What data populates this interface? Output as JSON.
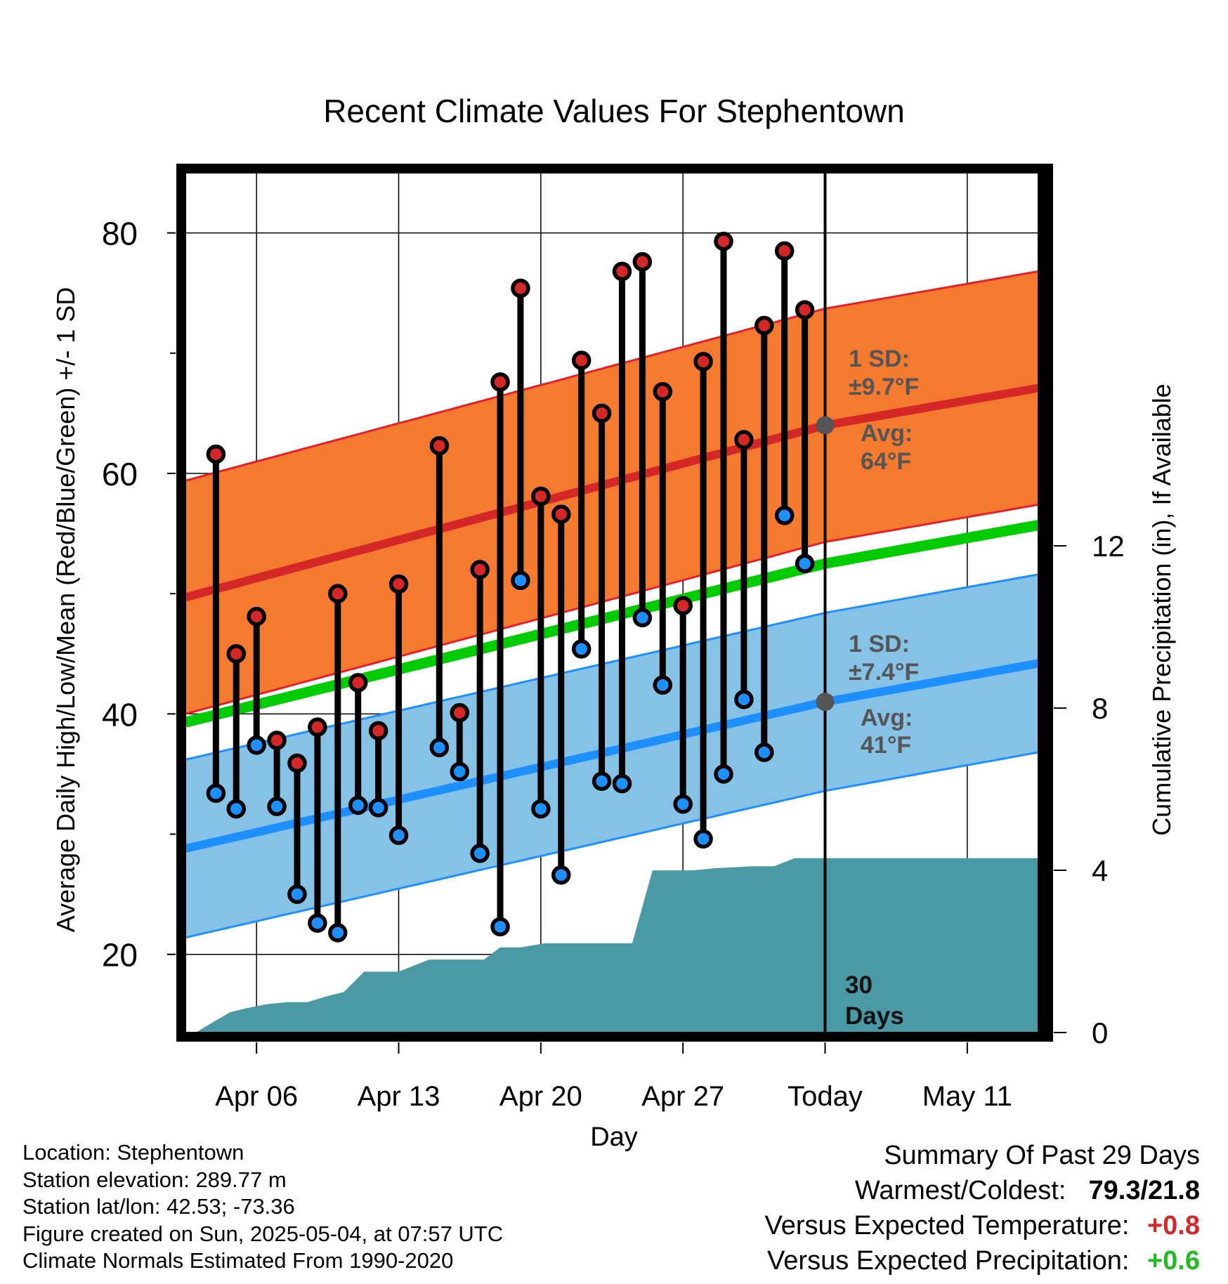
{
  "chart_data": {
    "type": "line",
    "title": "Recent Climate Values For Stephentown",
    "xlabel": "Day",
    "ylabel": "Average Daily High/Low/Mean (Red/Blue/Green) +/- 1 SD",
    "y2label": "Cumulative Precipitation (in), If Available",
    "ylim": [
      13.5,
      85
    ],
    "y2lim": [
      0,
      21.2
    ],
    "yticks": [
      80,
      60,
      40,
      20
    ],
    "y2ticks": [
      12,
      8,
      4,
      0
    ],
    "x_range_days": [
      1.5,
      43.5
    ],
    "xticks": [
      {
        "day": 5,
        "label": "Apr 06"
      },
      {
        "day": 12,
        "label": "Apr 13"
      },
      {
        "day": 19,
        "label": "Apr 20"
      },
      {
        "day": 26,
        "label": "Apr 27"
      },
      {
        "day": 33,
        "label": "Today"
      },
      {
        "day": 40,
        "label": "May 11"
      }
    ],
    "today_day": 33,
    "today_label": "30 Days",
    "grid": true,
    "normals": {
      "high_mean": [
        [
          1.5,
          49.7
        ],
        [
          33,
          64
        ],
        [
          43.5,
          67.1
        ]
      ],
      "high_sd": 9.7,
      "low_mean": [
        [
          1.5,
          28.8
        ],
        [
          33,
          41
        ],
        [
          43.5,
          44.2
        ]
      ],
      "low_sd": 7.4,
      "overall_mean": [
        [
          1.5,
          39.3
        ],
        [
          33,
          52.5
        ],
        [
          43.5,
          55.7
        ]
      ]
    },
    "annotations": {
      "high_sd_label": [
        "1 SD:",
        "±9.7°F"
      ],
      "high_avg_label": [
        "Avg:",
        "64°F"
      ],
      "low_sd_label": [
        "1 SD:",
        "±7.4°F"
      ],
      "low_avg_label": [
        "Avg:",
        "41°F"
      ]
    },
    "series": [
      {
        "name": "High",
        "color": "#d62728",
        "values": [
          [
            3,
            61.6
          ],
          [
            4,
            45.0
          ],
          [
            5,
            48.1
          ],
          [
            6,
            37.8
          ],
          [
            7,
            35.9
          ],
          [
            8,
            38.9
          ],
          [
            9,
            50.0
          ],
          [
            10,
            42.6
          ],
          [
            11,
            38.6
          ],
          [
            12,
            50.8
          ],
          [
            14,
            62.3
          ],
          [
            15,
            40.1
          ],
          [
            16,
            52.0
          ],
          [
            17,
            67.6
          ],
          [
            18,
            75.4
          ],
          [
            19,
            58.1
          ],
          [
            20,
            56.6
          ],
          [
            21,
            69.4
          ],
          [
            22,
            65.0
          ],
          [
            23,
            76.8
          ],
          [
            24,
            77.6
          ],
          [
            25,
            66.8
          ],
          [
            26,
            49.0
          ],
          [
            27,
            69.3
          ],
          [
            28,
            79.3
          ],
          [
            29,
            62.8
          ],
          [
            30,
            72.3
          ],
          [
            31,
            78.5
          ],
          [
            32,
            73.6
          ]
        ]
      },
      {
        "name": "Low",
        "color": "#1e8fff",
        "values": [
          [
            3,
            33.4
          ],
          [
            4,
            32.1
          ],
          [
            5,
            37.4
          ],
          [
            6,
            32.3
          ],
          [
            7,
            25.0
          ],
          [
            8,
            22.6
          ],
          [
            9,
            21.8
          ],
          [
            10,
            32.4
          ],
          [
            11,
            32.2
          ],
          [
            12,
            29.9
          ],
          [
            14,
            37.2
          ],
          [
            15,
            35.2
          ],
          [
            16,
            28.4
          ],
          [
            17,
            22.3
          ],
          [
            18,
            51.1
          ],
          [
            19,
            32.1
          ],
          [
            20,
            26.6
          ],
          [
            21,
            45.4
          ],
          [
            22,
            34.4
          ],
          [
            23,
            34.2
          ],
          [
            24,
            48.0
          ],
          [
            25,
            42.4
          ],
          [
            26,
            32.5
          ],
          [
            27,
            29.6
          ],
          [
            28,
            35.0
          ],
          [
            29,
            41.2
          ],
          [
            30,
            36.8
          ],
          [
            31,
            56.5
          ],
          [
            32,
            52.5
          ]
        ]
      },
      {
        "name": "Cumulative Precipitation",
        "color": "#4a9aa5",
        "values": [
          [
            2,
            0
          ],
          [
            3,
            0.3
          ],
          [
            3.7,
            0.5
          ],
          [
            4.5,
            0.6
          ],
          [
            5.5,
            0.7
          ],
          [
            6.5,
            0.75
          ],
          [
            7.5,
            0.75
          ],
          [
            8.5,
            0.9
          ],
          [
            9.3,
            1.0
          ],
          [
            10.3,
            1.5
          ],
          [
            11.5,
            1.5
          ],
          [
            12,
            1.5
          ],
          [
            13.5,
            1.8
          ],
          [
            14.5,
            1.8
          ],
          [
            16.2,
            1.8
          ],
          [
            17,
            2.1
          ],
          [
            18,
            2.1
          ],
          [
            19.2,
            2.2
          ],
          [
            20,
            2.2
          ],
          [
            21.5,
            2.2
          ],
          [
            22.3,
            2.2
          ],
          [
            23.5,
            2.2
          ],
          [
            24.5,
            4.0
          ],
          [
            25.5,
            4.0
          ],
          [
            26.5,
            4.0
          ],
          [
            27.5,
            4.05
          ],
          [
            29.5,
            4.1
          ],
          [
            30.5,
            4.1
          ],
          [
            31.5,
            4.3
          ],
          [
            43.5,
            4.3
          ]
        ]
      }
    ]
  },
  "colors": {
    "high_band": "#f47a30",
    "high_edge": "#e5202a",
    "high_mean": "#d62728",
    "low_band": "#86c1e6",
    "low_edge": "#1e8fff",
    "low_mean": "#1e8fff",
    "mean": "#00cc00",
    "precip": "#4a9aa5",
    "annotation": "#555555",
    "positive_temp": "#d62728",
    "positive_precip": "#22bb22"
  },
  "footer": {
    "location": "Location: Stephentown",
    "elevation": "Station elevation: 289.77 m",
    "latlon": "Station lat/lon: 42.53; -73.36",
    "created": "Figure created on Sun, 2025-05-04, at 07:57 UTC",
    "normals": "Climate Normals Estimated From 1990-2020"
  },
  "summary": {
    "title": "Summary Of Past 29 Days",
    "warm_cold_label": "Warmest/Coldest:",
    "warm_cold_value": "79.3/21.8",
    "temp_label": "Versus Expected Temperature:",
    "temp_value": "+0.8",
    "precip_label": "Versus Expected Precipitation:",
    "precip_value": "+0.6"
  }
}
